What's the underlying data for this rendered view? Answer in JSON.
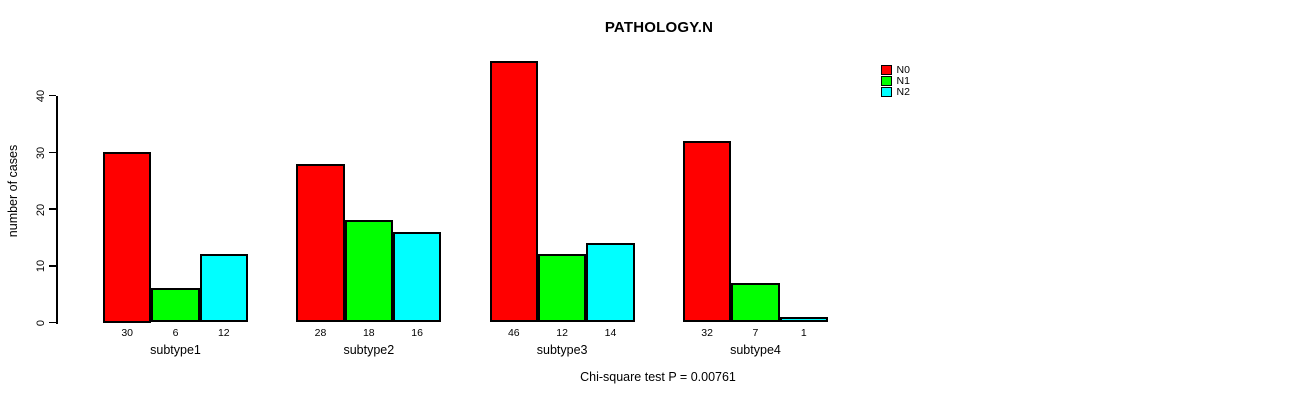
{
  "page": {
    "background_color": "#FFFFFF"
  },
  "chart_data": {
    "type": "bar",
    "title": "PATHOLOGY.N",
    "xlabel": "",
    "ylabel": "number of cases",
    "categories": [
      "subtype1",
      "subtype2",
      "subtype3",
      "subtype4"
    ],
    "series": [
      {
        "name": "N0",
        "color": "#FF0000",
        "values": [
          30,
          28,
          46,
          32
        ]
      },
      {
        "name": "N1",
        "color": "#00FF00",
        "values": [
          6,
          18,
          12,
          7
        ]
      },
      {
        "name": "N2",
        "color": "#00FFFF",
        "values": [
          12,
          16,
          14,
          1
        ]
      }
    ],
    "yticks": [
      0,
      10,
      20,
      30,
      40
    ],
    "ylim": [
      0,
      46
    ],
    "grid": false,
    "bar_border_color": "#000000",
    "axis_color": "#000000",
    "legend": {
      "position": "top-right",
      "entries": [
        "N0",
        "N1",
        "N2"
      ]
    },
    "footnote": "Chi-square test P = 0.00761"
  }
}
